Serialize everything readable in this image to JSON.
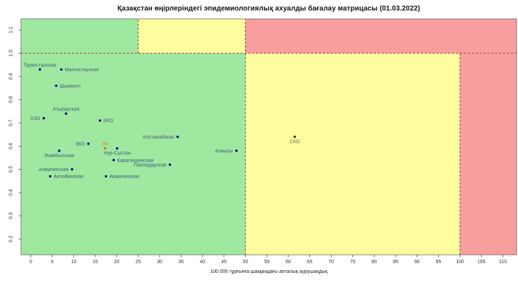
{
  "chart_data": {
    "type": "scatter",
    "title": "Қазақстан өңірлеріндегі эпидемиологиялық ахуалды бағалау матрицасы (01.03.2022)",
    "xlabel": "100 000 тұрғынға шаққандағы апталық аурушаңдық",
    "ylabel": "",
    "xlim": [
      -2.3,
      113.2
    ],
    "ylim": [
      0.132,
      1.148
    ],
    "x_ticks": [
      0,
      5,
      10,
      15,
      20,
      25,
      30,
      35,
      40,
      45,
      50,
      55,
      60,
      65,
      70,
      75,
      80,
      85,
      90,
      95,
      100,
      105,
      110
    ],
    "y_ticks": [
      "0.2",
      "0.3",
      "0.4",
      "0.5",
      "0.6",
      "0.7",
      "0.8",
      "0.9",
      "1.0",
      "1.1"
    ],
    "grid": false,
    "legend": "none",
    "zone_colors": {
      "green": "#9FE89F",
      "yellow": "#FDFD9E",
      "red": "#F99E9E"
    },
    "regions": [
      {
        "zone": "green",
        "x0": -2.3,
        "x1": 25,
        "y0": 1.0,
        "y1": 1.148
      },
      {
        "zone": "yellow",
        "x0": 25,
        "x1": 50,
        "y0": 1.0,
        "y1": 1.148
      },
      {
        "zone": "red",
        "x0": 50,
        "x1": 113.2,
        "y0": 1.0,
        "y1": 1.148
      },
      {
        "zone": "green",
        "x0": -2.3,
        "x1": 50,
        "y0": 0.132,
        "y1": 1.0
      },
      {
        "zone": "yellow",
        "x0": 50,
        "x1": 100,
        "y0": 0.132,
        "y1": 1.0
      },
      {
        "zone": "red",
        "x0": 100,
        "x1": 113.2,
        "y0": 0.132,
        "y1": 1.0
      }
    ],
    "dash_color": "#993333",
    "dashed_lines": [
      {
        "x1": -2.3,
        "y1": 1.0,
        "x2": 113.2,
        "y2": 1.0
      },
      {
        "x1": 50,
        "y1": 0.132,
        "x2": 50,
        "y2": 1.148
      },
      {
        "x1": 25,
        "y1": 1.0,
        "x2": 25,
        "y2": 1.148
      },
      {
        "x1": 100,
        "y1": 0.132,
        "x2": 100,
        "y2": 1.0
      }
    ],
    "point_color": "#00008B",
    "label_color": "#3A5F7D",
    "points": [
      {
        "name": "Туркестанская",
        "x": 2.1,
        "y": 0.93,
        "label_pos": "above"
      },
      {
        "name": "Мангистауская",
        "x": 7.1,
        "y": 0.93,
        "label_pos": "right"
      },
      {
        "name": "Шымкент",
        "x": 5.9,
        "y": 0.86,
        "label_pos": "right"
      },
      {
        "name": "Атырауская",
        "x": 8.2,
        "y": 0.74,
        "label_pos": "above"
      },
      {
        "name": "КЗО",
        "x": 3.0,
        "y": 0.72,
        "label_pos": "left"
      },
      {
        "name": "ВКО",
        "x": 16.1,
        "y": 0.71,
        "label_pos": "right"
      },
      {
        "name": "Костанайская",
        "x": 34.2,
        "y": 0.64,
        "label_pos": "left"
      },
      {
        "name": "ЗКО",
        "x": 13.4,
        "y": 0.61,
        "label_pos": "left"
      },
      {
        "name": "РК",
        "x": 17.3,
        "y": 0.59,
        "label_pos": "above",
        "point_color": "#D2691E",
        "label_color": "#CC8224"
      },
      {
        "name": "Нур-Султан",
        "x": 20.1,
        "y": 0.59,
        "label_pos": "below"
      },
      {
        "name": "Жамбылская",
        "x": 6.6,
        "y": 0.58,
        "label_pos": "below"
      },
      {
        "name": "Алматы",
        "x": 47.9,
        "y": 0.58,
        "label_pos": "left"
      },
      {
        "name": "Карагандинская",
        "x": 19.3,
        "y": 0.54,
        "label_pos": "right"
      },
      {
        "name": "Павлодарская",
        "x": 32.4,
        "y": 0.52,
        "label_pos": "left"
      },
      {
        "name": "Алматинская",
        "x": 9.6,
        "y": 0.5,
        "label_pos": "left"
      },
      {
        "name": "Актюбинская",
        "x": 4.5,
        "y": 0.47,
        "label_pos": "right"
      },
      {
        "name": "Акмолинская",
        "x": 17.5,
        "y": 0.47,
        "label_pos": "right"
      },
      {
        "name": "СКО",
        "x": 61.5,
        "y": 0.64,
        "label_pos": "below",
        "point_color": "#6B1212",
        "label_color": "#6E6B50"
      }
    ]
  }
}
